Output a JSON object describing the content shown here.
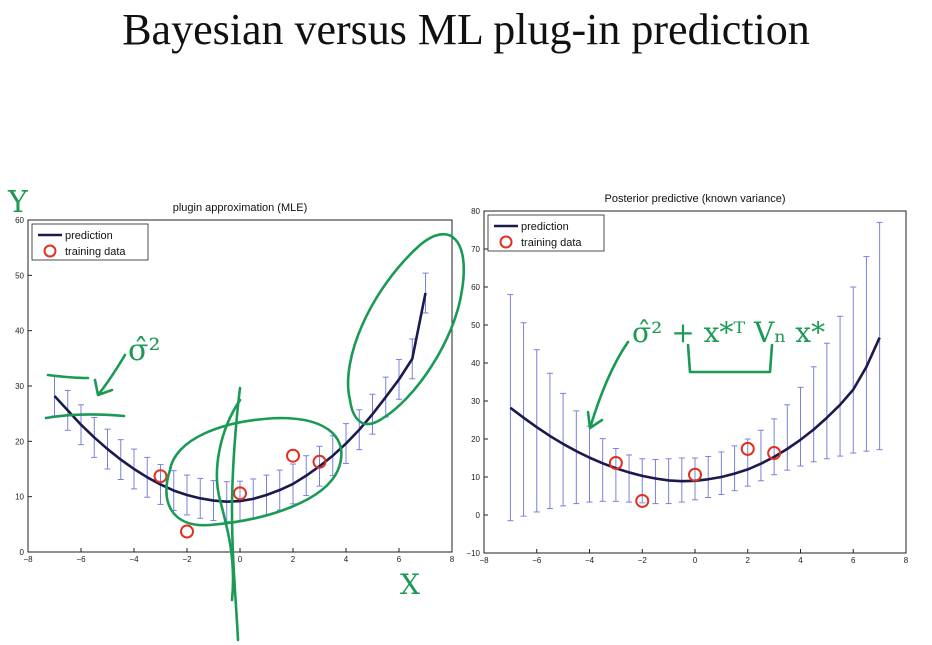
{
  "slide": {
    "title": "Bayesian versus ML plug-in prediction"
  },
  "colors": {
    "prediction": "#1a1a4e",
    "training": "#e03020",
    "errorbar": "#7c80dc",
    "ink": "#1a9a55"
  },
  "annotations": {
    "left_y": "Y",
    "left_x": "X",
    "left_sigma": "σ̂²",
    "right_formula": "σ̂² + x*ᵀ Vₙ x*"
  },
  "chart_data": [
    {
      "type": "line",
      "title": "plugin approximation (MLE)",
      "xlim": [
        -8,
        8
      ],
      "ylim": [
        0,
        60
      ],
      "xticks": [
        -8,
        -6,
        -4,
        -2,
        0,
        2,
        4,
        6,
        8
      ],
      "yticks": [
        0,
        10,
        20,
        30,
        40,
        50,
        60
      ],
      "grid": false,
      "legend_position": "top-left",
      "legend": [
        "prediction",
        "training data"
      ],
      "series": [
        {
          "name": "prediction",
          "kind": "line",
          "x": [
            -7,
            -6.5,
            -6,
            -5.5,
            -5,
            -4.5,
            -4,
            -3.5,
            -3,
            -2.5,
            -2,
            -1.5,
            -1,
            -0.5,
            0,
            0.5,
            1,
            1.5,
            2,
            2.5,
            3,
            3.5,
            4,
            4.5,
            5,
            5.5,
            6,
            6.5,
            7
          ],
          "y": [
            28.2,
            25.6,
            23.0,
            20.7,
            18.6,
            16.7,
            15.0,
            13.5,
            12.2,
            11.1,
            10.3,
            9.7,
            9.3,
            9.1,
            9.2,
            9.6,
            10.3,
            11.2,
            12.3,
            13.8,
            15.5,
            17.4,
            19.6,
            22.1,
            24.9,
            28.0,
            31.2,
            34.9,
            46.8
          ]
        },
        {
          "name": "error bars",
          "kind": "errorbar",
          "x": [
            -7,
            -6.5,
            -6,
            -5.5,
            -5,
            -4.5,
            -4,
            -3.5,
            -3,
            -2.5,
            -2,
            -1.5,
            -1,
            -0.5,
            0,
            0.5,
            1,
            1.5,
            2,
            2.5,
            3,
            3.5,
            4,
            4.5,
            5,
            5.5,
            6,
            6.5,
            7
          ],
          "y": [
            28.2,
            25.6,
            23.0,
            20.7,
            18.6,
            16.7,
            15.0,
            13.5,
            12.2,
            11.1,
            10.3,
            9.7,
            9.3,
            9.1,
            9.2,
            9.6,
            10.3,
            11.2,
            12.3,
            13.8,
            15.5,
            17.4,
            19.6,
            22.1,
            24.9,
            28.0,
            31.2,
            34.9,
            46.8
          ],
          "err": 3.6
        },
        {
          "name": "training data",
          "kind": "scatter",
          "x": [
            -3,
            -2,
            0,
            2,
            3
          ],
          "y": [
            13.7,
            3.7,
            10.6,
            17.4,
            16.3
          ]
        }
      ]
    },
    {
      "type": "line",
      "title": "Posterior predictive (known variance)",
      "xlim": [
        -8,
        8
      ],
      "ylim": [
        -10,
        80
      ],
      "xticks": [
        -8,
        -6,
        -4,
        -2,
        0,
        2,
        4,
        6,
        8
      ],
      "yticks": [
        -10,
        0,
        10,
        20,
        30,
        40,
        50,
        60,
        70,
        80
      ],
      "grid": false,
      "legend_position": "top-left",
      "legend": [
        "prediction",
        "training data"
      ],
      "series": [
        {
          "name": "prediction",
          "kind": "line",
          "x": [
            -7,
            -6.5,
            -6,
            -5.5,
            -5,
            -4.5,
            -4,
            -3.5,
            -3,
            -2.5,
            -2,
            -1.5,
            -1,
            -0.5,
            0,
            0.5,
            1,
            1.5,
            2,
            2.5,
            3,
            3.5,
            4,
            4.5,
            5,
            5.5,
            6,
            6.5,
            7
          ],
          "y": [
            28.2,
            25.6,
            23.1,
            20.8,
            18.7,
            16.8,
            15.1,
            13.6,
            12.3,
            11.2,
            10.3,
            9.6,
            9.1,
            8.9,
            9.0,
            9.4,
            10.0,
            10.9,
            12.0,
            13.5,
            15.3,
            17.4,
            19.8,
            22.5,
            25.6,
            29.0,
            33.0,
            39.0,
            46.7
          ]
        },
        {
          "name": "error bars",
          "kind": "errorbar",
          "x": [
            -7,
            -6.5,
            -6,
            -5.5,
            -5,
            -4.5,
            -4,
            -3.5,
            -3,
            -2.5,
            -2,
            -1.5,
            -1,
            -0.5,
            0,
            0.5,
            1,
            1.5,
            2,
            2.5,
            3,
            3.5,
            4,
            4.5,
            5,
            5.5,
            6,
            6.5,
            7
          ],
          "lower": [
            -1.5,
            -0.3,
            0.8,
            1.7,
            2.4,
            3.0,
            3.4,
            3.6,
            3.6,
            3.4,
            3.2,
            3.0,
            3.0,
            3.4,
            4.0,
            4.6,
            5.4,
            6.4,
            7.6,
            9.0,
            10.6,
            11.8,
            12.9,
            14.0,
            14.8,
            15.5,
            16.3,
            16.8,
            17.2
          ],
          "upper": [
            58.0,
            50.6,
            43.5,
            37.3,
            32.0,
            27.4,
            23.4,
            20.1,
            17.5,
            15.8,
            14.8,
            14.6,
            14.8,
            15.0,
            15.0,
            15.4,
            16.6,
            18.2,
            20.0,
            22.3,
            25.3,
            29.0,
            33.6,
            39.0,
            45.2,
            52.3,
            60.0,
            68.0,
            77.0
          ]
        },
        {
          "name": "training data",
          "kind": "scatter",
          "x": [
            -3,
            -2,
            0,
            2,
            3
          ],
          "y": [
            13.7,
            3.7,
            10.6,
            17.4,
            16.3
          ]
        }
      ]
    }
  ]
}
